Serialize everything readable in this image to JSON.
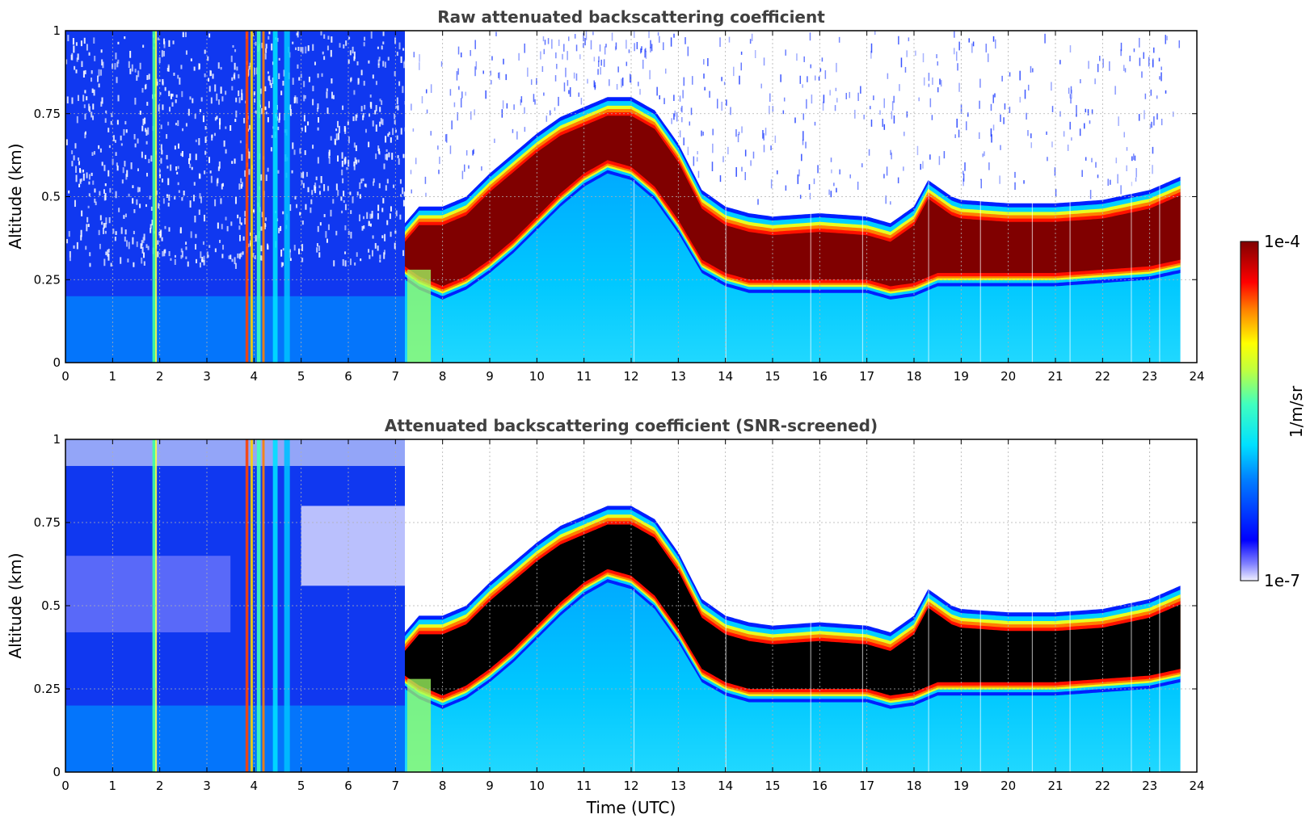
{
  "chart_data": [
    {
      "type": "heatmap",
      "title": "Raw attenuated backscattering coefficient",
      "xlabel": "",
      "ylabel": "Altitude (km)",
      "xlim": [
        0,
        24
      ],
      "ylim": [
        0,
        1
      ],
      "x_ticks": [
        "0",
        "1",
        "2",
        "3",
        "4",
        "5",
        "6",
        "7",
        "8",
        "9",
        "10",
        "11",
        "12",
        "13",
        "14",
        "15",
        "16",
        "17",
        "18",
        "19",
        "20",
        "21",
        "22",
        "23",
        "24"
      ],
      "y_ticks": [
        "0",
        "0.25",
        "0.5",
        "0.75",
        "1"
      ],
      "grid": true,
      "data_end_time": 23.65,
      "layer_top_km": [
        [
          7.2,
          0.4
        ],
        [
          7.5,
          0.45
        ],
        [
          8,
          0.45
        ],
        [
          8.5,
          0.48
        ],
        [
          9,
          0.55
        ],
        [
          9.5,
          0.61
        ],
        [
          10,
          0.67
        ],
        [
          10.5,
          0.72
        ],
        [
          11,
          0.75
        ],
        [
          11.5,
          0.78
        ],
        [
          12,
          0.78
        ],
        [
          12.5,
          0.74
        ],
        [
          13,
          0.64
        ],
        [
          13.5,
          0.5
        ],
        [
          14,
          0.45
        ],
        [
          14.5,
          0.43
        ],
        [
          15,
          0.42
        ],
        [
          16,
          0.43
        ],
        [
          17,
          0.42
        ],
        [
          17.5,
          0.4
        ],
        [
          18,
          0.45
        ],
        [
          18.3,
          0.53
        ],
        [
          18.8,
          0.48
        ],
        [
          19,
          0.47
        ],
        [
          20,
          0.46
        ],
        [
          21,
          0.46
        ],
        [
          22,
          0.47
        ],
        [
          23,
          0.5
        ],
        [
          23.65,
          0.54
        ]
      ],
      "layer_bottom_km": [
        [
          7.2,
          0.28
        ],
        [
          7.5,
          0.25
        ],
        [
          8,
          0.22
        ],
        [
          8.5,
          0.25
        ],
        [
          9,
          0.3
        ],
        [
          9.5,
          0.36
        ],
        [
          10,
          0.43
        ],
        [
          10.5,
          0.5
        ],
        [
          11,
          0.56
        ],
        [
          11.5,
          0.6
        ],
        [
          12,
          0.58
        ],
        [
          12.5,
          0.52
        ],
        [
          13,
          0.42
        ],
        [
          13.5,
          0.3
        ],
        [
          14,
          0.26
        ],
        [
          14.5,
          0.24
        ],
        [
          15,
          0.24
        ],
        [
          16,
          0.24
        ],
        [
          17,
          0.24
        ],
        [
          17.5,
          0.22
        ],
        [
          18,
          0.23
        ],
        [
          18.5,
          0.26
        ],
        [
          19,
          0.26
        ],
        [
          20,
          0.26
        ],
        [
          21,
          0.26
        ],
        [
          22,
          0.27
        ],
        [
          23,
          0.28
        ],
        [
          23.65,
          0.3
        ]
      ]
    },
    {
      "type": "heatmap",
      "title": "Attenuated backscattering coefficient (SNR-screened)",
      "xlabel": "Time (UTC)",
      "ylabel": "Altitude (km)",
      "xlim": [
        0,
        24
      ],
      "ylim": [
        0,
        1
      ],
      "x_ticks": [
        "0",
        "1",
        "2",
        "3",
        "4",
        "5",
        "6",
        "7",
        "8",
        "9",
        "10",
        "11",
        "12",
        "13",
        "14",
        "15",
        "16",
        "17",
        "18",
        "19",
        "20",
        "21",
        "22",
        "23",
        "24"
      ],
      "y_ticks": [
        "0",
        "0.25",
        "0.5",
        "0.75",
        "1"
      ],
      "grid": true,
      "data_end_time": 23.65,
      "saturated_color": "#000000"
    }
  ],
  "colorbar": {
    "label": "1/m/sr",
    "max_label": "1e-4",
    "min_label": "1e-7",
    "colormap": "jet",
    "scale": "log"
  },
  "colors": {
    "title": "#404040",
    "saturated_raw": "#800000",
    "saturated_screened": "#000000",
    "grid": "#b0b0b0"
  }
}
